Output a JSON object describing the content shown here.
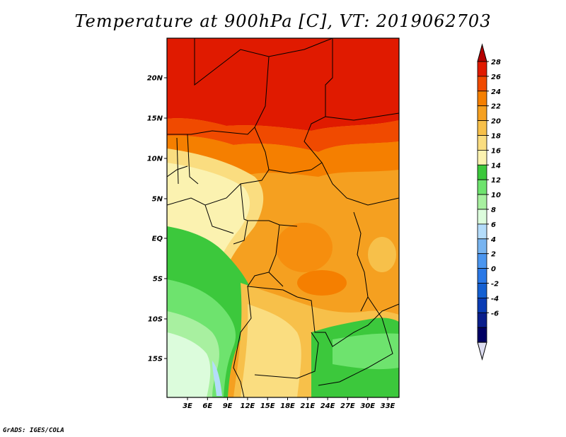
{
  "title": "Temperature at 900hPa [C], VT: 2019062703",
  "credit": "GrADS: IGES/COLA",
  "map": {
    "lat_ticks": [
      "20N",
      "15N",
      "10N",
      "5N",
      "EQ",
      "5S",
      "10S",
      "15S"
    ],
    "lon_ticks": [
      "3E",
      "6E",
      "9E",
      "12E",
      "15E",
      "18E",
      "21E",
      "24E",
      "27E",
      "30E",
      "33E"
    ]
  },
  "colorbar": {
    "labels": [
      "28",
      "26",
      "24",
      "22",
      "20",
      "18",
      "16",
      "14",
      "12",
      "10",
      "8",
      "6",
      "4",
      "2",
      "0",
      "-2",
      "-4",
      "-6"
    ],
    "colors": [
      "#e01a00",
      "#f04a00",
      "#f57f00",
      "#f5a020",
      "#f7c04a",
      "#fadd80",
      "#fbf2b0",
      "#3cc83c",
      "#6ee36e",
      "#a8f0a0",
      "#dcfcdc",
      "#b4dcfa",
      "#78b4f0",
      "#4b96f0",
      "#2a78e6",
      "#1460d2",
      "#0a3cb4",
      "#0a1e8c",
      "#000064"
    ],
    "top_arrow_color": "#b40000",
    "bottom_arrow_color": "#dcdcf0"
  }
}
